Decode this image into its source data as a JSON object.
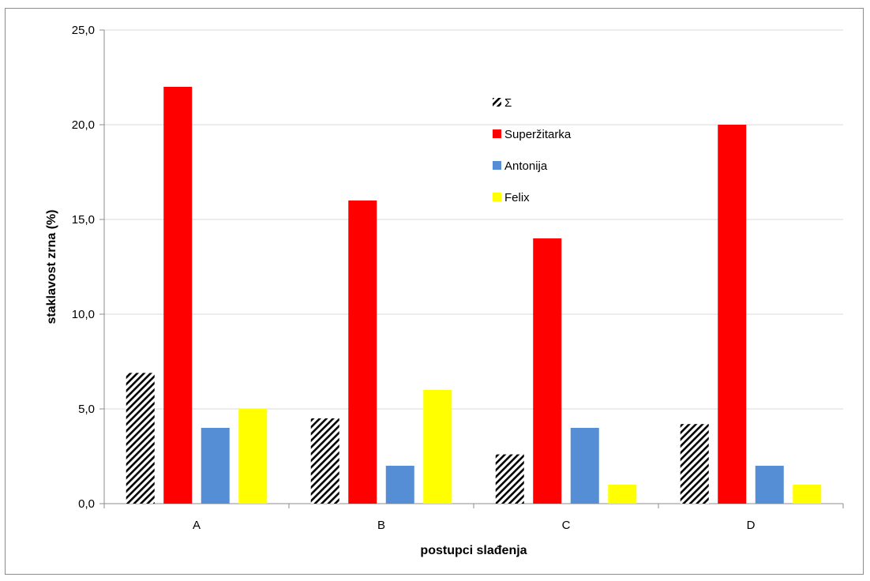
{
  "chart_data": {
    "type": "bar",
    "title": "",
    "xlabel": "postupci slađenja",
    "ylabel": "staklavost zrna (%)",
    "categories": [
      "A",
      "B",
      "C",
      "D"
    ],
    "ylim": [
      0,
      25
    ],
    "yticks": [
      "0,0",
      "5,0",
      "10,0",
      "15,0",
      "20,0",
      "25,0"
    ],
    "grid": true,
    "legend_position": "top-center",
    "series": [
      {
        "name": "Σ",
        "values": [
          6.9,
          4.5,
          2.6,
          4.2
        ],
        "color": "#000000",
        "pattern": "diagonal-hatch"
      },
      {
        "name": "Superžitarka",
        "values": [
          22,
          16,
          14,
          20
        ],
        "color": "#ff0000"
      },
      {
        "name": "Antonija",
        "values": [
          4,
          2,
          4,
          2
        ],
        "color": "#558ed5"
      },
      {
        "name": "Felix",
        "values": [
          5,
          6,
          1,
          1
        ],
        "color": "#ffff00"
      }
    ]
  }
}
